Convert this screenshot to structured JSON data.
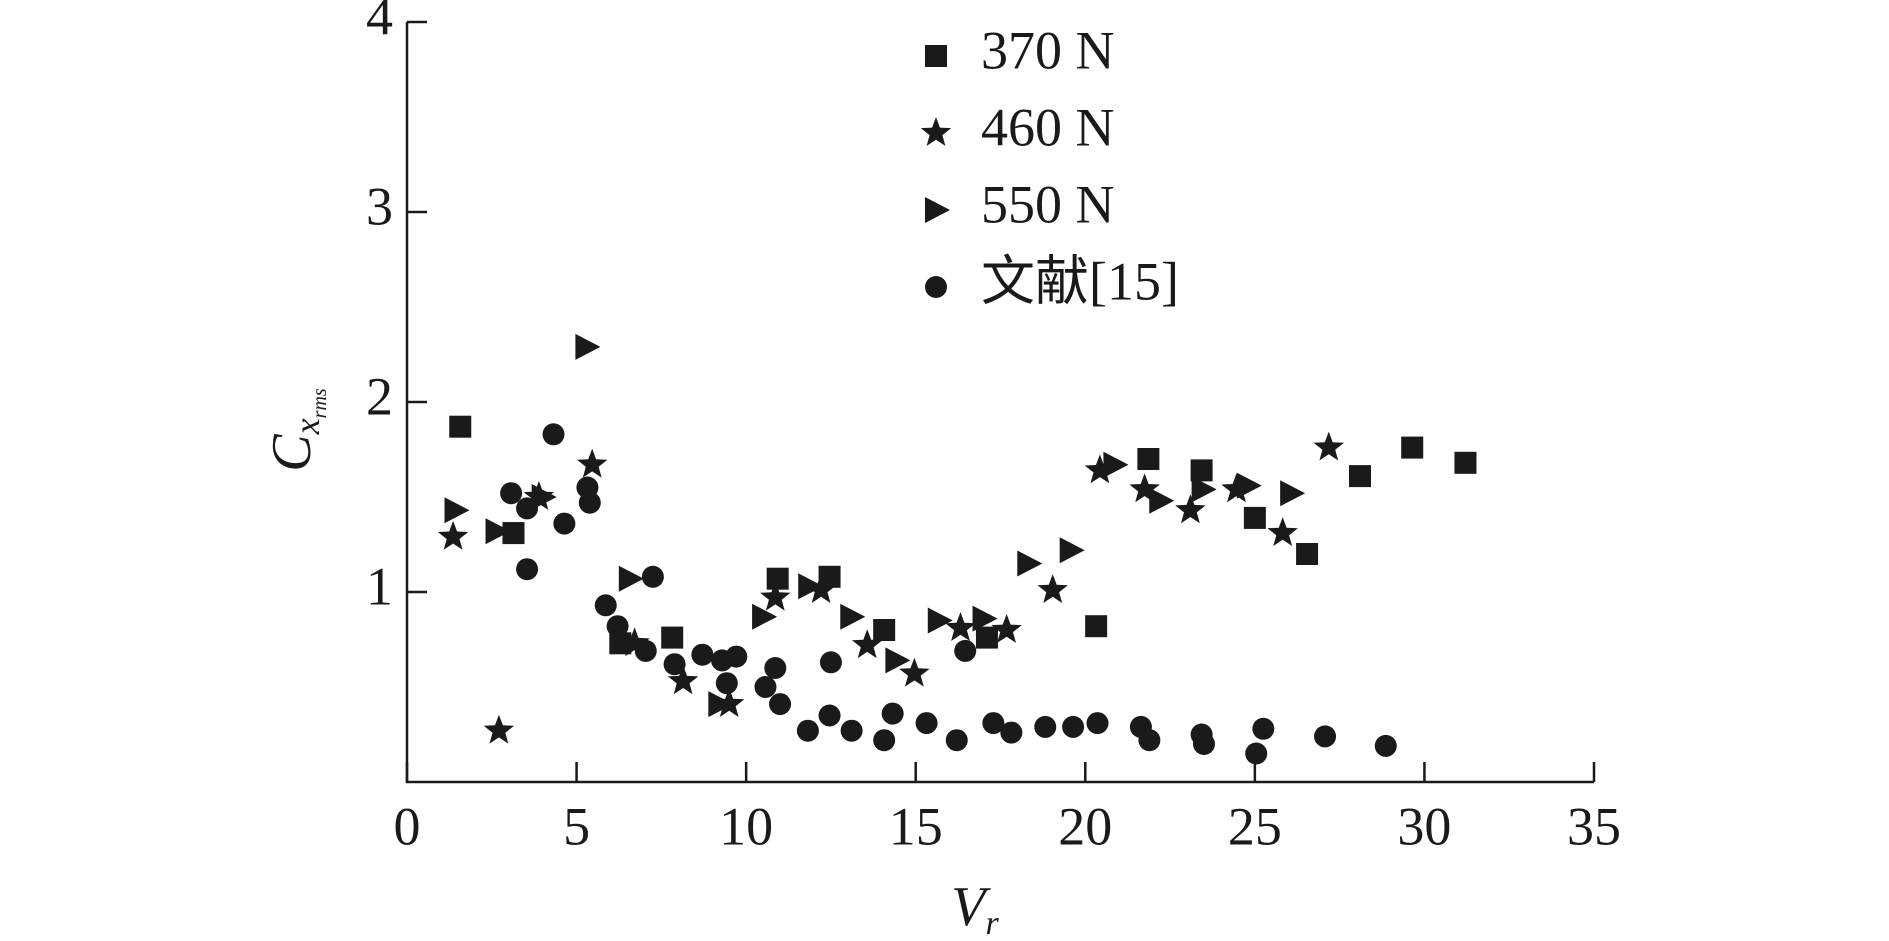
{
  "chart_data": {
    "type": "scatter",
    "xlabel": {
      "main": "V",
      "sub": "r"
    },
    "ylabel": {
      "main": "C",
      "sub": "x",
      "subsub": "rms"
    },
    "xlim": [
      0,
      35
    ],
    "xticks": [
      0,
      5,
      10,
      15,
      20,
      25,
      30,
      35
    ],
    "ylim": [
      0,
      4
    ],
    "yticks": [
      1,
      2,
      3,
      4
    ],
    "legend": "top",
    "series": [
      {
        "name": "370 N",
        "marker": "square",
        "color": "#1a1a1a",
        "x": [
          1.57,
          3.14,
          6.29,
          7.82,
          10.93,
          12.46,
          14.07,
          17.1,
          20.32,
          21.86,
          23.43,
          25.0,
          26.54,
          28.1,
          29.64,
          31.21
        ],
        "values": [
          1.87,
          1.31,
          0.73,
          0.76,
          1.07,
          1.08,
          0.8,
          0.76,
          0.82,
          1.7,
          1.64,
          1.39,
          1.2,
          1.61,
          1.76,
          1.68
        ]
      },
      {
        "name": "460 N",
        "marker": "star",
        "color": "#1a1a1a",
        "x": [
          1.36,
          2.71,
          3.89,
          5.46,
          6.71,
          8.14,
          9.5,
          10.86,
          12.21,
          13.57,
          14.96,
          16.32,
          17.68,
          19.04,
          20.43,
          21.75,
          23.1,
          24.46,
          25.82,
          27.18
        ],
        "values": [
          1.29,
          0.27,
          1.5,
          1.67,
          0.73,
          0.53,
          0.41,
          0.97,
          1.01,
          0.72,
          0.57,
          0.81,
          0.8,
          1.01,
          1.64,
          1.54,
          1.43,
          1.54,
          1.31,
          1.76
        ]
      },
      {
        "name": "550 N",
        "marker": "triangle",
        "color": "#1a1a1a",
        "x": [
          1.43,
          2.64,
          4.0,
          5.29,
          6.57,
          9.21,
          10.5,
          11.86,
          13.1,
          14.43,
          15.68,
          17.0,
          18.32,
          19.57,
          20.86,
          22.21,
          23.46,
          24.79,
          26.07
        ],
        "values": [
          1.43,
          1.32,
          1.5,
          2.29,
          1.07,
          0.41,
          0.87,
          1.03,
          0.87,
          0.64,
          0.85,
          0.86,
          1.15,
          1.22,
          1.67,
          1.48,
          1.54,
          1.56,
          1.52
        ]
      },
      {
        "name": "文献[15]",
        "marker": "circle",
        "color": "#1a1a1a",
        "x": [
          3.07,
          3.54,
          4.32,
          5.32,
          5.39,
          4.64,
          3.54,
          5.86,
          6.21,
          7.04,
          7.25,
          7.89,
          8.71,
          9.29,
          9.71,
          9.43,
          10.57,
          10.86,
          11.0,
          11.82,
          12.46,
          12.5,
          13.11,
          14.07,
          14.32,
          15.32,
          16.21,
          16.46,
          17.29,
          17.82,
          18.82,
          19.64,
          20.36,
          21.64,
          21.89,
          23.43,
          23.5,
          25.04,
          25.25,
          27.07,
          28.86
        ],
        "values": [
          1.52,
          1.44,
          1.83,
          1.55,
          1.47,
          1.36,
          1.12,
          0.93,
          0.82,
          0.69,
          1.08,
          0.62,
          0.67,
          0.64,
          0.66,
          0.52,
          0.5,
          0.6,
          0.41,
          0.27,
          0.35,
          0.63,
          0.27,
          0.22,
          0.36,
          0.31,
          0.22,
          0.69,
          0.31,
          0.26,
          0.29,
          0.29,
          0.31,
          0.29,
          0.22,
          0.25,
          0.2,
          0.15,
          0.28,
          0.24,
          0.19
        ]
      }
    ]
  }
}
